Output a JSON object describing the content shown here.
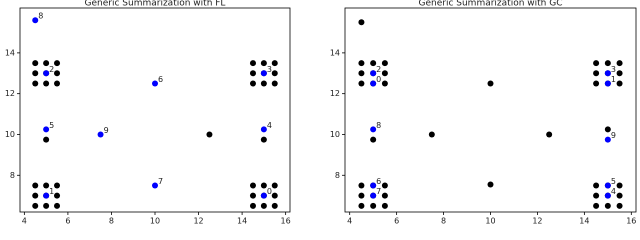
{
  "chart_data": [
    {
      "type": "scatter",
      "title": "Generic Summarization with FL",
      "xlim": [
        3.8,
        16.2
      ],
      "ylim": [
        6.2,
        16.2
      ],
      "xticks": [
        4,
        6,
        8,
        10,
        12,
        14,
        16
      ],
      "yticks": [
        8,
        10,
        12,
        14
      ],
      "series": [
        {
          "color": "#000000",
          "x": [
            4.5,
            5,
            5.5,
            4.5,
            5,
            5.5,
            4.5,
            5,
            5.5,
            14.5,
            15,
            15.5,
            14.5,
            15,
            15.5,
            14.5,
            15,
            15.5,
            4.5,
            5,
            5.5,
            4.5,
            5,
            5.5,
            4.5,
            5,
            5.5,
            14.5,
            15,
            15.5,
            14.5,
            15,
            15.5,
            14.5,
            15,
            15.5,
            5,
            12.5,
            15
          ],
          "y": [
            13.5,
            13.5,
            13.5,
            13,
            13,
            13,
            12.5,
            12.5,
            12.5,
            13.5,
            13.5,
            13.5,
            13,
            13,
            13,
            12.5,
            12.5,
            12.5,
            7.5,
            7.5,
            7.5,
            7,
            7,
            7,
            6.5,
            6.5,
            6.5,
            7.5,
            7.5,
            7.5,
            7,
            7,
            7,
            6.5,
            6.5,
            6.5,
            9.75,
            10,
            9.75
          ]
        },
        {
          "color": "#0000ff",
          "x": [
            4.5,
            5,
            10,
            15,
            5,
            7.5,
            15,
            10,
            5,
            15
          ],
          "y": [
            15.6,
            13,
            12.5,
            13,
            10.25,
            10,
            10.25,
            7.5,
            7,
            7
          ],
          "labels": [
            "8",
            "2",
            "6",
            "3",
            "5",
            "9",
            "4",
            "7",
            "1",
            "0"
          ]
        }
      ]
    },
    {
      "type": "scatter",
      "title": "Generic Summarization with GC",
      "xlim": [
        3.8,
        16.2
      ],
      "ylim": [
        6.2,
        16.2
      ],
      "xticks": [
        4,
        6,
        8,
        10,
        12,
        14,
        16
      ],
      "yticks": [
        8,
        10,
        12,
        14
      ],
      "series": [
        {
          "color": "#000000",
          "x": [
            4.5,
            5,
            5.5,
            4.5,
            5,
            5.5,
            4.5,
            5,
            5.5,
            14.5,
            15,
            15.5,
            14.5,
            15,
            15.5,
            14.5,
            15,
            15.5,
            4.5,
            5,
            5.5,
            4.5,
            5,
            5.5,
            4.5,
            5,
            5.5,
            14.5,
            15,
            15.5,
            14.5,
            15,
            15.5,
            14.5,
            15,
            15.5,
            4.5,
            10,
            7.5,
            12.5,
            15,
            5,
            10
          ],
          "y": [
            13.5,
            13.5,
            13.5,
            13,
            13,
            13,
            12.5,
            12.5,
            12.5,
            13.5,
            13.5,
            13.5,
            13,
            13,
            13,
            12.5,
            12.5,
            12.5,
            7.5,
            7.5,
            7.5,
            7,
            7,
            7,
            6.5,
            6.5,
            6.5,
            7.5,
            7.5,
            7.5,
            7,
            7,
            7,
            6.5,
            6.5,
            6.5,
            15.5,
            12.5,
            10,
            10,
            10.25,
            9.75,
            7.55
          ]
        },
        {
          "color": "#0000ff",
          "x": [
            5,
            5,
            15,
            15,
            5,
            15,
            5,
            5,
            15,
            15
          ],
          "y": [
            13,
            12.5,
            13,
            12.5,
            10.25,
            9.75,
            7.5,
            7,
            7.5,
            7
          ],
          "labels": [
            "2",
            "0",
            "3",
            "1",
            "8",
            "9",
            "6",
            "7",
            "5",
            "4"
          ]
        }
      ]
    }
  ]
}
